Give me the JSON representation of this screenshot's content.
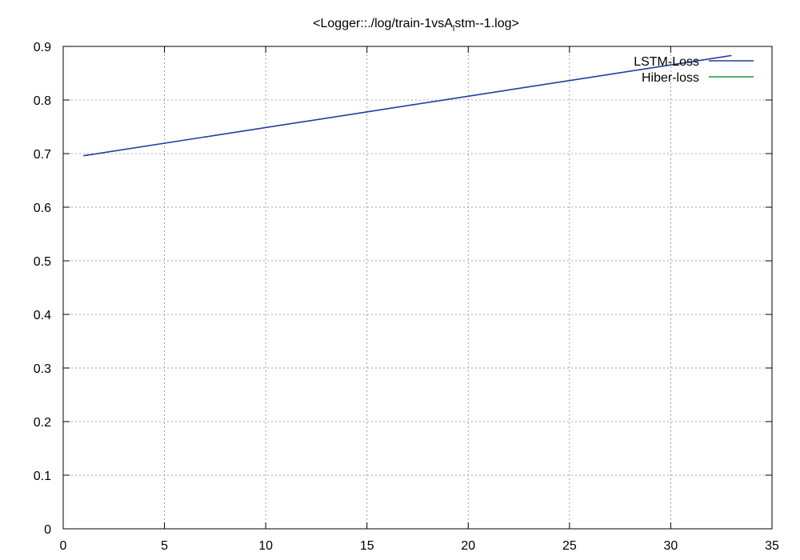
{
  "chart_data": {
    "type": "line",
    "title_parts": [
      "<Logger::./log/train-1vsA",
      "l",
      "stm--1.log>"
    ],
    "xlim": [
      0,
      35
    ],
    "ylim": [
      0,
      0.9
    ],
    "xticks": [
      0,
      5,
      10,
      15,
      20,
      25,
      30,
      35
    ],
    "yticks": [
      0,
      0.1,
      0.2,
      0.3,
      0.4,
      0.5,
      0.6,
      0.7,
      0.8,
      0.9
    ],
    "xtick_labels": [
      "0",
      "5",
      "10",
      "15",
      "20",
      "25",
      "30",
      "35"
    ],
    "ytick_labels": [
      "0",
      "0.1",
      "0.2",
      "0.3",
      "0.4",
      "0.5",
      "0.6",
      "0.7",
      "0.8",
      "0.9"
    ],
    "grid": true,
    "legend_position": "top-right",
    "series": [
      {
        "name": "LSTM-Loss",
        "color": "#1f3d99",
        "x": [
          1,
          33
        ],
        "y": [
          0.696,
          0.883
        ]
      },
      {
        "name": "Hiber-loss",
        "color": "#1a9a3a",
        "x": [],
        "y": []
      }
    ]
  }
}
